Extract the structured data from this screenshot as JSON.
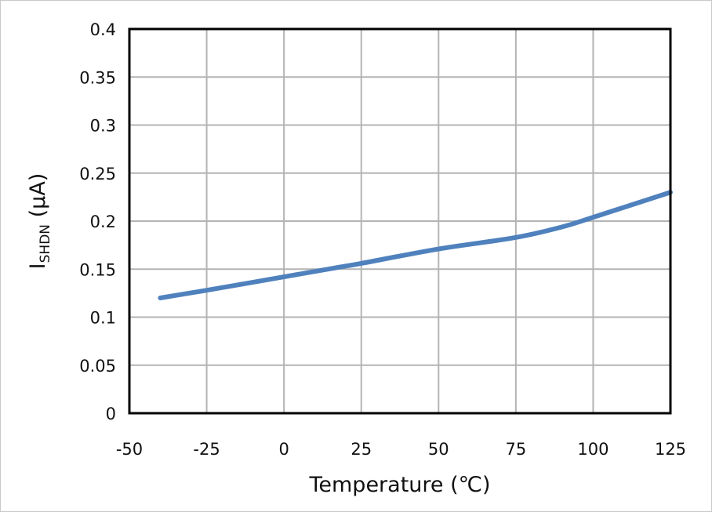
{
  "chart_data": {
    "type": "line",
    "title": "",
    "xlabel": "Temperature (℃)",
    "ylabel_main": "I",
    "ylabel_sub": "SHDN",
    "ylabel_unit": " (µA)",
    "xlim": [
      -50,
      125
    ],
    "ylim": [
      0,
      0.4
    ],
    "xticks": [
      "-50",
      "-25",
      "0",
      "25",
      "50",
      "75",
      "100",
      "125"
    ],
    "yticks": [
      "0",
      "0.05",
      "0.1",
      "0.15",
      "0.2",
      "0.25",
      "0.3",
      "0.35",
      "0.4"
    ],
    "grid": true,
    "series": [
      {
        "color": "#4f81bd",
        "x": [
          -40,
          -25,
          0,
          16,
          25,
          50,
          75,
          90,
          100,
          125
        ],
        "y": [
          0.12,
          0.128,
          0.142,
          0.151,
          0.156,
          0.171,
          0.183,
          0.194,
          0.204,
          0.23
        ]
      }
    ]
  }
}
